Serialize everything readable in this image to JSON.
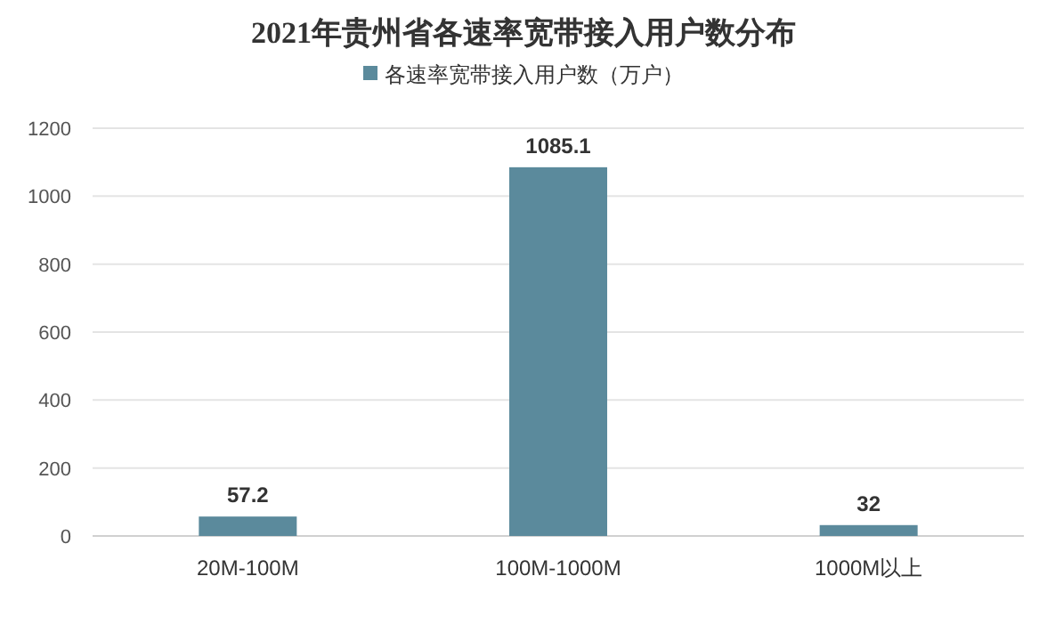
{
  "chart_data": {
    "type": "bar",
    "title": "2021年贵州省各速率宽带接入用户数分布",
    "categories": [
      "20M-100M",
      "100M-1000M",
      "1000M以上"
    ],
    "series": [
      {
        "name": "各速率宽带接入用户数（万户）",
        "color": "#5b8a9c",
        "values": [
          57.2,
          1085.1,
          32
        ]
      }
    ],
    "ylim": [
      0,
      1200
    ],
    "yticks": [
      0,
      200,
      400,
      600,
      800,
      1000,
      1200
    ],
    "grid": "y",
    "legend": "top",
    "data_labels": true
  }
}
